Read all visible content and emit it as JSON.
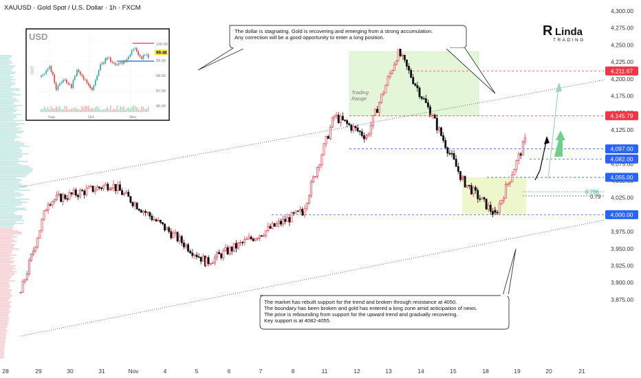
{
  "header": {
    "title": "XAUUSD · Gold Spot / U.S. Dollar · 1h · FXCM"
  },
  "logo": {
    "brand_line1": "Linda",
    "brand_line2": "TRADING"
  },
  "inset": {
    "title": "USD",
    "side_label": "DXY",
    "price_box": "99.48",
    "y_ticks": [
      "100.00",
      "99.00",
      "98.00",
      "97.00",
      "96.00"
    ],
    "x_ticks": [
      "Sep",
      "Oct",
      "Nov"
    ]
  },
  "annotations": {
    "top_note_line1": "The dollar is stagnating. Gold is recovering and emerging from a strong accumulation.",
    "top_note_line2": "Any correction will be a good opportunity to enter a long position.",
    "bottom_note_line1": "The market has rebuilt support for the trend and broken through resistance at 4050.",
    "bottom_note_line2": "The boundary has been broken and gold has entered a long zone amid anticipation of news.",
    "bottom_note_line3": "The price is rebounding from support for the upward trend and gradually recovering.",
    "bottom_note_line4": "Key support is at 4082-4055.",
    "zone_label_line1": "Trading",
    "zone_label_line2": "Range",
    "fib_a": "0.786",
    "fib_b": "0.79"
  },
  "chart_data": {
    "type": "candlestick",
    "symbol": "XAUUSD",
    "timeframe": "1h",
    "x_ticks": [
      "28",
      "29",
      "30",
      "31",
      "Nov",
      "4",
      "5",
      "6",
      "7",
      "8",
      "11",
      "12",
      "13",
      "14",
      "15",
      "18",
      "19",
      "20",
      "21"
    ],
    "y_ticks": [
      "4,300.00",
      "4,275.00",
      "4,250.00",
      "4,225.00",
      "4,200.00",
      "4,175.00",
      "4,150.00",
      "4,125.00",
      "4,100.00",
      "4,075.00",
      "4,050.00",
      "4,025.00",
      "4,000.00",
      "3,975.00",
      "3,950.00",
      "3,925.00",
      "3,900.00",
      "3,875.00"
    ],
    "ylim": [
      3862,
      4307
    ],
    "price_labels": [
      {
        "value": 4211.67,
        "text": "4,211.67",
        "color": "#f23645"
      },
      {
        "value": 4145.79,
        "text": "4,145.79",
        "color": "#f23645"
      },
      {
        "value": 4097.0,
        "text": "4,097.00",
        "color": "#2962ff"
      },
      {
        "value": 4082.0,
        "text": "4,082.00",
        "color": "#2962ff"
      },
      {
        "value": 4055.0,
        "text": "4,055.00",
        "color": "#2962ff"
      },
      {
        "value": 4000.0,
        "text": "4,000.00",
        "color": "#2962ff"
      }
    ],
    "key_points": [
      {
        "x": "28",
        "price": 3885
      },
      {
        "x": "29",
        "price": 4020
      },
      {
        "x": "31",
        "price": 4045
      },
      {
        "x": "5",
        "price": 3930
      },
      {
        "x": "8",
        "price": 4005
      },
      {
        "x": "11",
        "price": 4145
      },
      {
        "x": "12",
        "price": 4115
      },
      {
        "x": "13",
        "price": 4240
      },
      {
        "x": "14",
        "price": 4150
      },
      {
        "x": "15",
        "price": 4050
      },
      {
        "x": "18",
        "price": 4000
      },
      {
        "x": "19",
        "price": 4115
      }
    ],
    "zones": [
      {
        "name": "Trading Range",
        "from": "11",
        "to": "14",
        "low": 4145.79,
        "high": 4240
      },
      {
        "name": "support-zone",
        "from": "18",
        "to": "19",
        "low": 4000,
        "high": 4055
      }
    ]
  }
}
